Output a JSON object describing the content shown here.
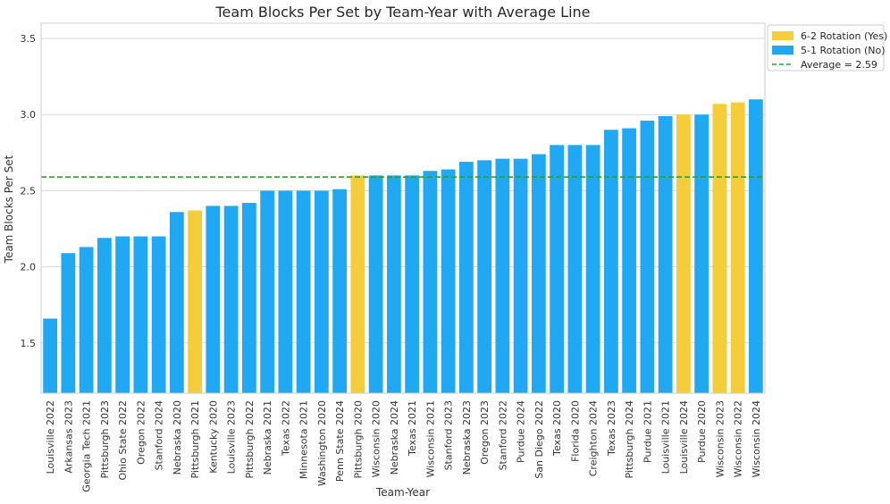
{
  "chart_data": {
    "type": "bar",
    "title": "Team Blocks Per Set by Team-Year with Average Line",
    "xlabel": "Team-Year",
    "ylabel": "Team Blocks Per Set",
    "ylim": [
      1.17,
      3.6
    ],
    "yticks": [
      "1.5",
      "2.0",
      "2.5",
      "3.0",
      "3.5"
    ],
    "grid": true,
    "legend_position": "outside-top-right",
    "colors": {
      "yes": "#f5cc3a",
      "no": "#21a8f2",
      "average": "#2ca02c"
    },
    "legend": [
      {
        "label": "6-2 Rotation (Yes)",
        "group": "yes"
      },
      {
        "label": "5-1 Rotation (No)",
        "group": "no"
      },
      {
        "label": "Average = 2.59",
        "group": "average"
      }
    ],
    "average": 2.59,
    "categories": [
      "Louisville 2022",
      "Arkansas 2023",
      "Georgia Tech 2021",
      "Pittsburgh 2023",
      "Ohio State 2022",
      "Oregon 2022",
      "Stanford 2024",
      "Nebraska 2020",
      "Pittsburgh 2021",
      "Kentucky 2020",
      "Louisville 2023",
      "Pittsburgh 2022",
      "Nebraska 2021",
      "Texas 2022",
      "Minnesota 2021",
      "Washington 2020",
      "Penn State 2024",
      "Pittsburgh 2020",
      "Wisconsin 2020",
      "Nebraska 2024",
      "Texas 2021",
      "Wisconsin 2021",
      "Stanford 2023",
      "Nebraska 2023",
      "Oregon 2023",
      "Stanford 2022",
      "Purdue 2024",
      "San Diego 2022",
      "Texas 2020",
      "Florida 2020",
      "Creighton 2024",
      "Texas 2023",
      "Pittsburgh 2024",
      "Purdue 2021",
      "Louisville 2021",
      "Louisville 2024",
      "Purdue 2020",
      "Wisconsin 2023",
      "Wisconsin 2022",
      "Wisconsin 2024"
    ],
    "values": [
      1.66,
      2.09,
      2.13,
      2.19,
      2.2,
      2.2,
      2.2,
      2.36,
      2.37,
      2.4,
      2.4,
      2.42,
      2.5,
      2.5,
      2.5,
      2.5,
      2.51,
      2.6,
      2.6,
      2.6,
      2.6,
      2.63,
      2.64,
      2.69,
      2.7,
      2.71,
      2.71,
      2.74,
      2.8,
      2.8,
      2.8,
      2.9,
      2.91,
      2.96,
      2.99,
      3.0,
      3.0,
      3.07,
      3.08,
      3.1
    ],
    "rotation_62": [
      false,
      false,
      false,
      false,
      false,
      false,
      false,
      false,
      true,
      false,
      false,
      false,
      false,
      false,
      false,
      false,
      false,
      true,
      false,
      false,
      false,
      false,
      false,
      false,
      false,
      false,
      false,
      false,
      false,
      false,
      false,
      false,
      false,
      false,
      false,
      true,
      false,
      true,
      true,
      false
    ]
  }
}
